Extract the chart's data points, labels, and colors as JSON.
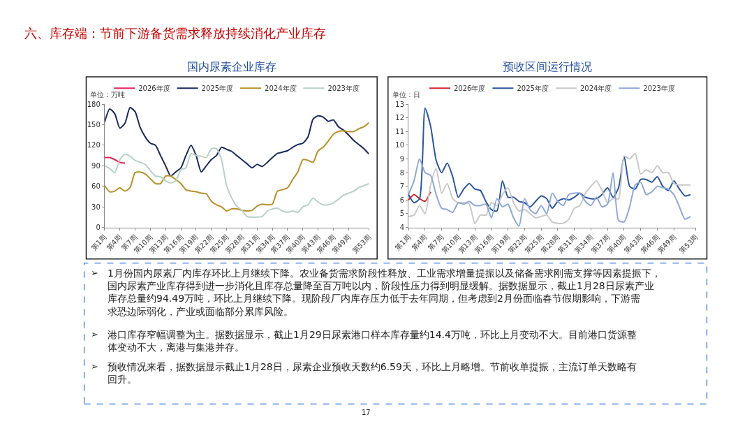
{
  "chart_data": [
    {
      "type": "line",
      "title": "国内尿素企业库存",
      "ylabel": "单位：万吨",
      "legend": "top",
      "marker": "none",
      "line_style": "solid",
      "grid": false,
      "categories": [
        "第1周",
        null,
        null,
        "第4周",
        null,
        null,
        "第7周",
        null,
        null,
        "第10周",
        null,
        null,
        "第13周",
        null,
        null,
        "第16周",
        null,
        null,
        "第19周",
        null,
        null,
        "第22周",
        null,
        null,
        "第25周",
        null,
        null,
        "第28周",
        null,
        null,
        "第31周",
        null,
        null,
        "第34周",
        null,
        null,
        "第37周",
        null,
        null,
        "第40周",
        null,
        null,
        "第43周",
        null,
        null,
        "第46周",
        null,
        null,
        "第49周",
        null,
        null,
        null,
        "第53周"
      ],
      "ylim": [
        0,
        180
      ],
      "yticks": [
        0,
        30,
        60,
        90,
        120,
        150,
        180
      ],
      "series": [
        {
          "name": "2026年度",
          "color": "#e8225a",
          "values": [
            102,
            102,
            99,
            95,
            94,
            null,
            null,
            null,
            null,
            null,
            null,
            null,
            null,
            null,
            null,
            null,
            null,
            null,
            null,
            null,
            null,
            null,
            null,
            null,
            null,
            null,
            null,
            null,
            null,
            null,
            null,
            null,
            null,
            null,
            null,
            null,
            null,
            null,
            null,
            null,
            null,
            null,
            null,
            null,
            null,
            null,
            null,
            null,
            null,
            null,
            null,
            null,
            null
          ]
        },
        {
          "name": "2025年度",
          "color": "#1b2a5e",
          "values": [
            154,
            173,
            166,
            145,
            152,
            175,
            169,
            146,
            132,
            123,
            120,
            105,
            90,
            75,
            81,
            87,
            105,
            120,
            105,
            81,
            90,
            99,
            105,
            117,
            114,
            111,
            105,
            99,
            93,
            87,
            92,
            89,
            95,
            102,
            108,
            110,
            112,
            117,
            121,
            123,
            132,
            158,
            163,
            161,
            155,
            157,
            147,
            142,
            135,
            127,
            121,
            115,
            107
          ]
        },
        {
          "name": "2024年度",
          "color": "#b8902a",
          "values": [
            61,
            52,
            53,
            58,
            53,
            58,
            80,
            81,
            78,
            71,
            64,
            64,
            75,
            75,
            70,
            64,
            55,
            53,
            52,
            50,
            49,
            38,
            33,
            30,
            24,
            27,
            27,
            25,
            24,
            25,
            31,
            34,
            33,
            34,
            53,
            55,
            58,
            70,
            81,
            99,
            98,
            95,
            112,
            117,
            126,
            136,
            140,
            141,
            140,
            140,
            144,
            147,
            153
          ]
        },
        {
          "name": "2023年度",
          "color": "#b6d2c5",
          "values": [
            90,
            86,
            80,
            99,
            107,
            104,
            98,
            95,
            92,
            83,
            75,
            74,
            68,
            65,
            68,
            84,
            87,
            108,
            105,
            104,
            102,
            115,
            115,
            99,
            61,
            43,
            31,
            25,
            16,
            15,
            15,
            16,
            24,
            27,
            28,
            24,
            22,
            24,
            22,
            30,
            33,
            43,
            37,
            33,
            33,
            36,
            41,
            47,
            50,
            53,
            58,
            61,
            64
          ]
        }
      ]
    },
    {
      "type": "line",
      "title": "预收区间运行情况",
      "ylabel": "单位：日",
      "legend": "top",
      "marker": "none",
      "line_style": "solid",
      "grid": false,
      "categories": [
        "第1周",
        null,
        null,
        "第4周",
        null,
        null,
        "第7周",
        null,
        null,
        "第10周",
        null,
        null,
        "第13周",
        null,
        null,
        "第16周",
        null,
        null,
        "第19周",
        null,
        null,
        "第22周",
        null,
        null,
        "第25周",
        null,
        null,
        "第28周",
        null,
        null,
        "第31周",
        null,
        null,
        "第34周",
        null,
        null,
        "第37周",
        null,
        null,
        "第40周",
        null,
        null,
        "第43周",
        null,
        null,
        "第46周",
        null,
        null,
        "第49周",
        null,
        null,
        null,
        "第53周"
      ],
      "ylim": [
        4,
        13
      ],
      "yticks": [
        4,
        5,
        6,
        7,
        8,
        9,
        10,
        11,
        12,
        13
      ],
      "series": [
        {
          "name": "2026年度",
          "color": "#d9262c",
          "values": [
            6.0,
            6.4,
            6.1,
            5.9,
            6.6,
            null,
            null,
            null,
            null,
            null,
            null,
            null,
            null,
            null,
            null,
            null,
            null,
            null,
            null,
            null,
            null,
            null,
            null,
            null,
            null,
            null,
            null,
            null,
            null,
            null,
            null,
            null,
            null,
            null,
            null,
            null,
            null,
            null,
            null,
            null,
            null,
            null,
            null,
            null,
            null,
            null,
            null,
            null,
            null,
            null,
            null,
            null,
            null
          ]
        },
        {
          "name": "2025年度",
          "color": "#2a57a0",
          "values": [
            6.4,
            5.8,
            6.1,
            12.7,
            11.4,
            8.9,
            8.0,
            8.7,
            7.7,
            6.2,
            6.8,
            7.2,
            6.8,
            6.7,
            5.9,
            5.3,
            5.2,
            7.4,
            6.2,
            6.2,
            5.9,
            5.8,
            5.5,
            5.9,
            6.3,
            6.1,
            5.4,
            5.9,
            6.1,
            6.0,
            6.2,
            6.5,
            6.2,
            6.1,
            6.1,
            6.4,
            6.9,
            6.2,
            6.9,
            9.2,
            7.0,
            6.8,
            7.5,
            7.5,
            7.3,
            7.7,
            7.0,
            6.7,
            7.4,
            6.8,
            6.3,
            6.4,
            null
          ]
        },
        {
          "name": "2024年度",
          "color": "#c8c8c8",
          "values": [
            4.8,
            4.9,
            5.6,
            5.0,
            7.1,
            8.3,
            6.5,
            7.2,
            6.1,
            5.8,
            5.8,
            5.7,
            4.3,
            4.9,
            4.9,
            5.8,
            5.6,
            6.4,
            6.9,
            5.8,
            5.2,
            5.3,
            5.0,
            4.7,
            4.8,
            4.9,
            4.4,
            4.3,
            4.3,
            4.6,
            5.4,
            5.6,
            6.5,
            7.0,
            7.4,
            6.7,
            5.8,
            6.1,
            6.1,
            9.2,
            9.0,
            9.4,
            7.9,
            8.2,
            8.0,
            8.5,
            8.0,
            8.0,
            7.2,
            7.1,
            7.1,
            7.1,
            null
          ]
        },
        {
          "name": "2023年度",
          "color": "#8ea8d8",
          "values": [
            6.4,
            7.4,
            9.0,
            8.0,
            7.8,
            6.4,
            5.4,
            5.3,
            5.1,
            5.8,
            5.7,
            5.9,
            5.6,
            5.6,
            5.7,
            4.7,
            6.1,
            5.5,
            5.7,
            4.7,
            4.1,
            6.1,
            5.3,
            5.0,
            5.6,
            5.0,
            6.5,
            5.9,
            5.6,
            6.4,
            6.5,
            6.5,
            5.9,
            5.6,
            6.2,
            5.5,
            5.7,
            8.0,
            4.5,
            4.4,
            5.5,
            7.1,
            7.3,
            6.4,
            6.6,
            7.0,
            6.9,
            6.8,
            6.4,
            5.5,
            4.6,
            4.8,
            null
          ]
        }
      ]
    },
    {
      "type": "other",
      "title": "六、库存端：节前下游备货需求释放持续消化产业库存",
      "annotations": [
        "➢ 1月份国内尿素厂内库存环比上月继续下降。农业备货需求阶段性释放、工业需求增量提振以及储备需求刚需支撑等因素提振下，国内尿素产业库存得到进一步消化且库存总量降至百万吨以内，阶段性压力得到明显缓解。据数据显示，截止1月28日尿素产业库存总量约94.49万吨，环比上月继续下降。现阶段厂内库存压力低于去年同期，但考虑到2月份面临春节假期影响，下游需求恐边际弱化，产业或面临部分累库风险。",
        "➢ 港口库存窄幅调整为主。据数据显示，截止1月29日尿素港口样本库存量约14.4万吨，环比上月变动不大。目前港口货源整体变动不大，离港与集港并存。",
        "➢ 预收情况来看，据数据显示截止1月28日，尿素企业预收天数约6.59天，环比上月略增。节前收单提振，主流订单天数略有回升。",
        "17"
      ]
    }
  ]
}
